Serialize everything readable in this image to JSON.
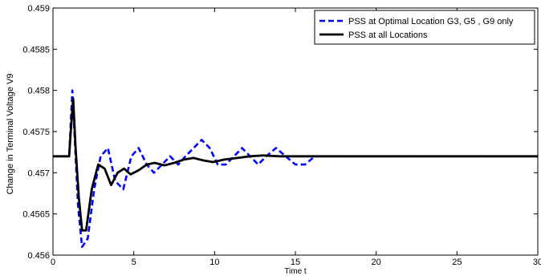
{
  "chart_data": {
    "type": "line",
    "title": "",
    "xlabel": "Time t",
    "ylabel": "Change in Terminal Voltage V9",
    "xlim": [
      0,
      30
    ],
    "ylim": [
      0.456,
      0.459
    ],
    "x_ticks": [
      0,
      5,
      10,
      15,
      20,
      25,
      30
    ],
    "x_tick_labels": [
      "0",
      "5",
      "10",
      "15",
      "20",
      "25",
      "30"
    ],
    "y_ticks": [
      0.456,
      0.4565,
      0.457,
      0.4575,
      0.458,
      0.4585,
      0.459
    ],
    "y_tick_labels": [
      "0.456",
      "0.4565",
      "0.457",
      "0.4575",
      "0.458",
      "0.4585",
      "0.459"
    ],
    "grid": false,
    "legend_position": "top-right",
    "series": [
      {
        "name": "PSS at Optimal Location G3, G5 , G9 only",
        "color": "#0000ff",
        "style": "dashed",
        "x": [
          0,
          1.0,
          1.1,
          1.2,
          1.35,
          1.55,
          1.8,
          2.15,
          2.55,
          2.95,
          3.4,
          3.85,
          4.35,
          4.85,
          5.3,
          5.8,
          6.25,
          6.75,
          7.25,
          7.75,
          8.2,
          8.7,
          9.2,
          9.7,
          10.2,
          10.7,
          11.2,
          11.7,
          12.2,
          12.7,
          13.2,
          13.8,
          14.4,
          15.0,
          15.6,
          16.2,
          16.8,
          17.4,
          18.0,
          18.6,
          19.2,
          19.8,
          20.4,
          21.0,
          21.6,
          22.2,
          22.8,
          23.4,
          24.0,
          24.6,
          25.2,
          25.8,
          26.4,
          27.0,
          27.6,
          28.2,
          28.8,
          29.4,
          30.0
        ],
        "values": [
          0.4572,
          0.4572,
          0.4576,
          0.458,
          0.4574,
          0.4566,
          0.4561,
          0.4562,
          0.4568,
          0.4572,
          0.4573,
          0.4569,
          0.4568,
          0.4572,
          0.4573,
          0.4571,
          0.457,
          0.4571,
          0.4572,
          0.4571,
          0.4572,
          0.4573,
          0.4574,
          0.4573,
          0.4571,
          0.4571,
          0.4572,
          0.4573,
          0.4572,
          0.4571,
          0.4572,
          0.4573,
          0.4572,
          0.4571,
          0.4571,
          0.4572,
          0.4572,
          0.4572,
          0.4572,
          0.4572,
          0.4572,
          0.4572,
          0.4572,
          0.4572,
          0.4572,
          0.4572,
          0.4572,
          0.4572,
          0.4572,
          0.4572,
          0.4572,
          0.4572,
          0.4572,
          0.4572,
          0.4572,
          0.4572,
          0.4572,
          0.4572,
          0.4572
        ]
      },
      {
        "name": "PSS at all Locations",
        "color": "#000000",
        "style": "solid",
        "x": [
          0,
          1.0,
          1.1,
          1.25,
          1.4,
          1.6,
          1.8,
          2.05,
          2.4,
          2.8,
          3.2,
          3.6,
          4.0,
          4.4,
          4.8,
          5.3,
          5.8,
          6.3,
          6.9,
          7.5,
          8.1,
          8.7,
          9.3,
          9.9,
          10.6,
          11.4,
          12.2,
          13.0,
          14.0,
          16.0,
          18.0,
          20.0,
          22.0,
          24.0,
          26.0,
          28.0,
          30.0
        ],
        "values": [
          0.4572,
          0.4572,
          0.4575,
          0.4579,
          0.4573,
          0.4567,
          0.4563,
          0.4563,
          0.4568,
          0.4571,
          0.45705,
          0.45685,
          0.457,
          0.45705,
          0.45698,
          0.45703,
          0.4571,
          0.45712,
          0.45709,
          0.45712,
          0.45716,
          0.45718,
          0.45715,
          0.45713,
          0.45716,
          0.45718,
          0.4572,
          0.45721,
          0.4572,
          0.4572,
          0.4572,
          0.4572,
          0.4572,
          0.4572,
          0.4572,
          0.4572,
          0.4572
        ]
      }
    ]
  }
}
